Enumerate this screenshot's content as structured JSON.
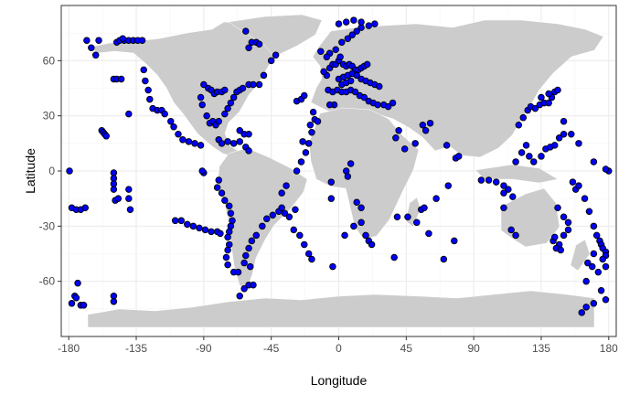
{
  "colors": {
    "background": "#ffffff",
    "panel_border": "#333333",
    "grid_major": "#ebebeb",
    "grid_minor": "#f5f5f5",
    "land": "#cccccc",
    "coast": "#ffffff",
    "point_fill": "#0000ff",
    "point_stroke": "#000000"
  },
  "chart_data": {
    "type": "scatter",
    "title": "",
    "xlabel": "Longitude",
    "ylabel": "Latitude",
    "xlim": [
      -185,
      185
    ],
    "ylim": [
      -90,
      90
    ],
    "xticks": [
      -180,
      -135,
      -90,
      -45,
      0,
      45,
      90,
      135,
      180
    ],
    "xtick_labels": [
      "-180",
      "-135",
      "-90",
      "-45",
      "0",
      "45",
      "90",
      "135",
      "180"
    ],
    "yticks": [
      -60,
      -30,
      0,
      30,
      60
    ],
    "ytick_labels": [
      "-60",
      "-30",
      "0",
      "30",
      "60"
    ],
    "grid": true,
    "background_map": "world land masses",
    "points": [
      [
        -179.5,
        0
      ],
      [
        -178,
        -20
      ],
      [
        -175,
        -21
      ],
      [
        -172,
        -21
      ],
      [
        -169,
        -20
      ],
      [
        -174,
        -61
      ],
      [
        -176,
        -68
      ],
      [
        -175,
        -69
      ],
      [
        -178,
        -72
      ],
      [
        -172,
        -73
      ],
      [
        -170,
        -73
      ],
      [
        -168,
        71
      ],
      [
        -165,
        67
      ],
      [
        -162,
        63
      ],
      [
        -160,
        71
      ],
      [
        -148,
        70
      ],
      [
        -146,
        71
      ],
      [
        -143,
        71
      ],
      [
        -140,
        71
      ],
      [
        -137,
        71
      ],
      [
        -134,
        71
      ],
      [
        -131,
        71
      ],
      [
        -144,
        72
      ],
      [
        -150,
        50
      ],
      [
        -148,
        50
      ],
      [
        -145,
        50
      ],
      [
        -158,
        22
      ],
      [
        -157,
        21
      ],
      [
        -156,
        20
      ],
      [
        -155,
        19
      ],
      [
        -140,
        31
      ],
      [
        -150,
        -1
      ],
      [
        -150,
        -4
      ],
      [
        -150,
        -7
      ],
      [
        -150,
        -10
      ],
      [
        -149,
        -16
      ],
      [
        -147,
        -15
      ],
      [
        -140,
        -10
      ],
      [
        -140,
        -15
      ],
      [
        -139,
        -21
      ],
      [
        -150,
        -68
      ],
      [
        -150,
        -71
      ],
      [
        -130,
        55
      ],
      [
        -129,
        49
      ],
      [
        -127,
        44
      ],
      [
        -126,
        39
      ],
      [
        -124,
        34
      ],
      [
        -121,
        33
      ],
      [
        -118,
        33
      ],
      [
        -116,
        31
      ],
      [
        -112,
        27
      ],
      [
        -110,
        24
      ],
      [
        -107,
        20
      ],
      [
        -104,
        17
      ],
      [
        -100,
        16
      ],
      [
        -96,
        15
      ],
      [
        -92,
        14
      ],
      [
        -88,
        30
      ],
      [
        -86,
        26
      ],
      [
        -84,
        27
      ],
      [
        -82,
        25
      ],
      [
        -80,
        27
      ],
      [
        -76,
        31
      ],
      [
        -74,
        34
      ],
      [
        -72,
        37
      ],
      [
        -70,
        40
      ],
      [
        -68,
        43
      ],
      [
        -66,
        44
      ],
      [
        -64,
        45
      ],
      [
        -60,
        47
      ],
      [
        -57,
        47
      ],
      [
        -53,
        47
      ],
      [
        -50,
        52
      ],
      [
        -45,
        60
      ],
      [
        -42,
        63
      ],
      [
        -60,
        67
      ],
      [
        -58,
        70
      ],
      [
        -55,
        70
      ],
      [
        -53,
        69
      ],
      [
        -62,
        76
      ],
      [
        -90,
        47
      ],
      [
        -87,
        45
      ],
      [
        -85,
        44
      ],
      [
        -83,
        42
      ],
      [
        -81,
        43
      ],
      [
        -78,
        43
      ],
      [
        -76,
        44
      ],
      [
        -92,
        40
      ],
      [
        -91,
        36
      ],
      [
        -80,
        17
      ],
      [
        -78,
        15
      ],
      [
        -74,
        16
      ],
      [
        -70,
        15
      ],
      [
        -66,
        16
      ],
      [
        -62,
        13
      ],
      [
        -60,
        11
      ],
      [
        -63,
        20
      ],
      [
        -66,
        22
      ],
      [
        -60,
        20
      ],
      [
        -90,
        -1
      ],
      [
        -91,
        0
      ],
      [
        -80,
        -5
      ],
      [
        -81,
        -9
      ],
      [
        -78,
        -12
      ],
      [
        -76,
        -16
      ],
      [
        -73,
        -19
      ],
      [
        -72,
        -23
      ],
      [
        -71,
        -27
      ],
      [
        -72,
        -30
      ],
      [
        -73,
        -33
      ],
      [
        -74,
        -36
      ],
      [
        -73,
        -40
      ],
      [
        -74,
        -43
      ],
      [
        -75,
        -47
      ],
      [
        -74,
        -51
      ],
      [
        -70,
        -55
      ],
      [
        -67,
        -55
      ],
      [
        -109,
        -27
      ],
      [
        -105,
        -27
      ],
      [
        -101,
        -29
      ],
      [
        -97,
        -30
      ],
      [
        -93,
        -31
      ],
      [
        -89,
        -32
      ],
      [
        -85,
        -33
      ],
      [
        -81,
        -33
      ],
      [
        -79,
        -34
      ],
      [
        -63,
        -64
      ],
      [
        -60,
        -62
      ],
      [
        -57,
        -62
      ],
      [
        -66,
        -68
      ],
      [
        -38,
        -12
      ],
      [
        -35,
        -8
      ],
      [
        -40,
        -22
      ],
      [
        -44,
        -24
      ],
      [
        -48,
        -26
      ],
      [
        -51,
        -30
      ],
      [
        -55,
        -35
      ],
      [
        -58,
        -38
      ],
      [
        -60,
        -42
      ],
      [
        -62,
        -46
      ],
      [
        -63,
        -50
      ],
      [
        -59,
        -52
      ],
      [
        -38,
        -20
      ],
      [
        -36,
        -23
      ],
      [
        -33,
        -25
      ],
      [
        -29,
        -21
      ],
      [
        -30,
        -32
      ],
      [
        -26,
        -35
      ],
      [
        -23,
        -40
      ],
      [
        -20,
        -45
      ],
      [
        -18,
        -48
      ],
      [
        -28,
        0
      ],
      [
        -25,
        5
      ],
      [
        -22,
        10
      ],
      [
        -20,
        15
      ],
      [
        -24,
        16
      ],
      [
        -18,
        21
      ],
      [
        -19,
        25
      ],
      [
        -16,
        28
      ],
      [
        -14,
        27
      ],
      [
        -17,
        32
      ],
      [
        -28,
        38
      ],
      [
        -25,
        39
      ],
      [
        -23,
        41
      ],
      [
        -8,
        52
      ],
      [
        -10,
        54
      ],
      [
        -6,
        56
      ],
      [
        -4,
        58
      ],
      [
        -2,
        58
      ],
      [
        0,
        60
      ],
      [
        1,
        62
      ],
      [
        3,
        58
      ],
      [
        5,
        57
      ],
      [
        7,
        58
      ],
      [
        9,
        57
      ],
      [
        11,
        55
      ],
      [
        13,
        55
      ],
      [
        15,
        56
      ],
      [
        17,
        57
      ],
      [
        19,
        58
      ],
      [
        -7,
        44
      ],
      [
        -4,
        43
      ],
      [
        -1,
        44
      ],
      [
        2,
        43
      ],
      [
        5,
        43
      ],
      [
        8,
        44
      ],
      [
        11,
        43
      ],
      [
        14,
        41
      ],
      [
        17,
        40
      ],
      [
        20,
        38
      ],
      [
        23,
        37
      ],
      [
        26,
        36
      ],
      [
        30,
        36
      ],
      [
        33,
        35
      ],
      [
        36,
        37
      ],
      [
        -3,
        36
      ],
      [
        -6,
        36
      ],
      [
        0,
        50
      ],
      [
        3,
        51
      ],
      [
        6,
        52
      ],
      [
        9,
        53
      ],
      [
        12,
        52
      ],
      [
        15,
        50
      ],
      [
        18,
        49
      ],
      [
        21,
        48
      ],
      [
        24,
        47
      ],
      [
        27,
        46
      ],
      [
        2,
        47
      ],
      [
        5,
        48
      ],
      [
        8,
        49
      ],
      [
        -6,
        64
      ],
      [
        -8,
        62
      ],
      [
        -2,
        66
      ],
      [
        2,
        70
      ],
      [
        6,
        72
      ],
      [
        9,
        74
      ],
      [
        12,
        76
      ],
      [
        15,
        78
      ],
      [
        20,
        79
      ],
      [
        24,
        80
      ],
      [
        -12,
        65
      ],
      [
        0,
        80
      ],
      [
        5,
        81
      ],
      [
        10,
        82
      ],
      [
        15,
        81
      ],
      [
        4,
        -35
      ],
      [
        -4,
        -52
      ],
      [
        10,
        -30
      ],
      [
        15,
        -28
      ],
      [
        18,
        -35
      ],
      [
        20,
        -38
      ],
      [
        22,
        -40
      ],
      [
        15,
        -20
      ],
      [
        12,
        -17
      ],
      [
        -5,
        -15
      ],
      [
        5,
        0
      ],
      [
        8,
        4
      ],
      [
        6,
        -3
      ],
      [
        -5,
        -6
      ],
      [
        39,
        -25
      ],
      [
        46,
        -25
      ],
      [
        55,
        -21
      ],
      [
        57,
        -20
      ],
      [
        65,
        -15
      ],
      [
        73,
        -8
      ],
      [
        77,
        -38
      ],
      [
        52,
        -28
      ],
      [
        37,
        -47
      ],
      [
        70,
        -48
      ],
      [
        60,
        -34
      ],
      [
        38,
        18
      ],
      [
        40,
        22
      ],
      [
        44,
        12
      ],
      [
        51,
        15
      ],
      [
        56,
        25
      ],
      [
        58,
        22
      ],
      [
        61,
        26
      ],
      [
        72,
        14
      ],
      [
        78,
        7
      ],
      [
        80,
        8
      ],
      [
        95,
        -5
      ],
      [
        100,
        -5
      ],
      [
        105,
        -6
      ],
      [
        110,
        -8
      ],
      [
        113,
        -10
      ],
      [
        116,
        -14
      ],
      [
        110,
        -20
      ],
      [
        115,
        -32
      ],
      [
        118,
        -35
      ],
      [
        110,
        -12
      ],
      [
        118,
        5
      ],
      [
        122,
        10
      ],
      [
        125,
        14
      ],
      [
        127,
        8
      ],
      [
        130,
        5
      ],
      [
        135,
        8
      ],
      [
        138,
        12
      ],
      [
        141,
        13
      ],
      [
        144,
        14
      ],
      [
        147,
        18
      ],
      [
        150,
        20
      ],
      [
        120,
        25
      ],
      [
        123,
        29
      ],
      [
        126,
        33
      ],
      [
        128,
        35
      ],
      [
        131,
        34
      ],
      [
        134,
        36
      ],
      [
        137,
        37
      ],
      [
        140,
        37
      ],
      [
        142,
        40
      ],
      [
        144,
        43
      ],
      [
        146,
        44
      ],
      [
        140,
        42
      ],
      [
        135,
        40
      ],
      [
        146,
        -20
      ],
      [
        150,
        -25
      ],
      [
        153,
        -28
      ],
      [
        153,
        -32
      ],
      [
        150,
        -35
      ],
      [
        147,
        -40
      ],
      [
        145,
        -42
      ],
      [
        148,
        -43
      ],
      [
        143,
        -38
      ],
      [
        144,
        -36
      ],
      [
        156,
        -6
      ],
      [
        158,
        -10
      ],
      [
        160,
        -8
      ],
      [
        164,
        -15
      ],
      [
        167,
        -22
      ],
      [
        170,
        -30
      ],
      [
        172,
        -35
      ],
      [
        174,
        -38
      ],
      [
        175,
        -40
      ],
      [
        176,
        -42
      ],
      [
        178,
        -44
      ],
      [
        178,
        -46
      ],
      [
        176,
        -48
      ],
      [
        170,
        -45
      ],
      [
        166,
        -50
      ],
      [
        169,
        -52
      ],
      [
        173,
        -55
      ],
      [
        178,
        -52
      ],
      [
        165,
        -60
      ],
      [
        175,
        -65
      ],
      [
        178,
        -70
      ],
      [
        170,
        -72
      ],
      [
        165,
        -74
      ],
      [
        162,
        -77
      ],
      [
        180,
        0
      ],
      [
        178,
        1
      ],
      [
        170,
        5
      ],
      [
        160,
        15
      ],
      [
        155,
        20
      ],
      [
        150,
        27
      ]
    ]
  }
}
